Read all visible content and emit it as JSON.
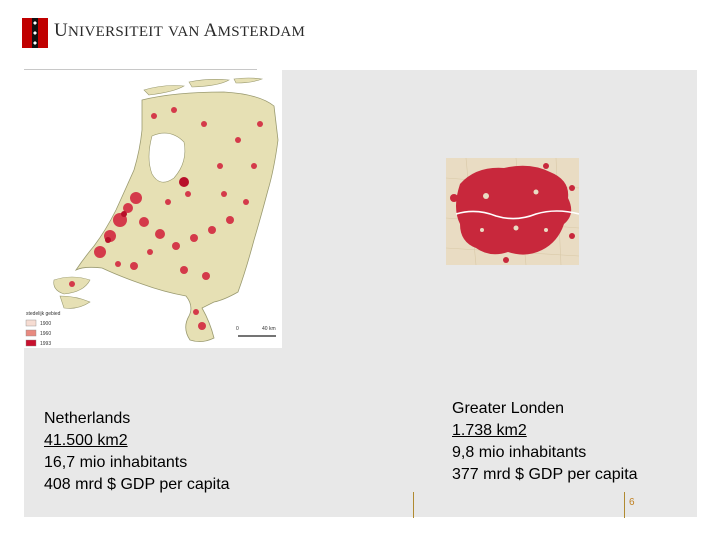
{
  "header": {
    "university_name": "Universiteit van Amsterdam",
    "logo_icon": "uva-crest-icon",
    "brand_color": "#c00000"
  },
  "nl_map": {
    "legend_title": "stedelijk gebied",
    "legend_years": [
      "1900",
      "1960",
      "1993"
    ],
    "legend_colors": [
      "#f6dcd2",
      "#e88a80",
      "#c8102e"
    ],
    "scale_start": "0",
    "scale_end": "40 km"
  },
  "left_caption": {
    "line1": "Netherlands",
    "line2": "41.500 km2",
    "line3": "16,7 mio inhabitants",
    "line4": "408 mrd $ GDP per capita"
  },
  "right_caption": {
    "line1": "Greater Londen",
    "line2": "1.738 km2",
    "line3": "9,8 mio inhabitants",
    "line4": "377 mrd $ GDP per capita"
  },
  "page_number": "6"
}
